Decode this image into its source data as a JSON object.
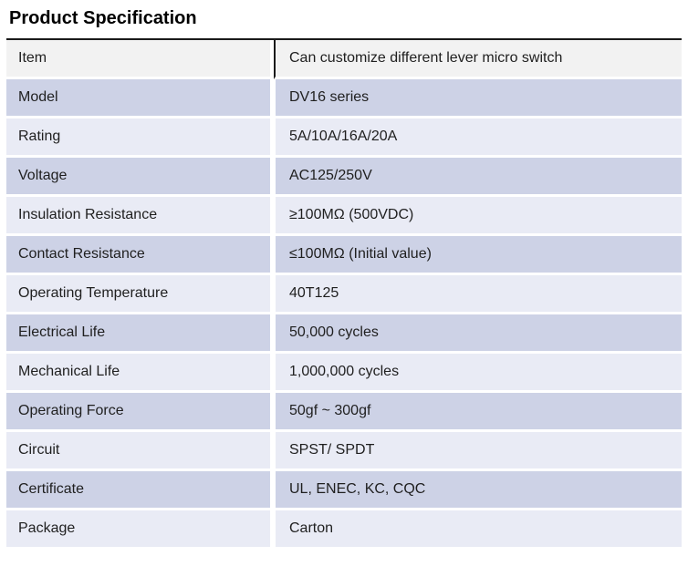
{
  "page": {
    "title": "Product Specification"
  },
  "table": {
    "rows": [
      {
        "label": "Item",
        "value": "Can customize different lever micro switch"
      },
      {
        "label": "Model",
        "value": "DV16 series"
      },
      {
        "label": "Rating",
        "value": "5A/10A/16A/20A"
      },
      {
        "label": "Voltage",
        "value": "AC125/250V"
      },
      {
        "label": "Insulation Resistance",
        "value": "≥100MΩ (500VDC)"
      },
      {
        "label": "Contact Resistance",
        "value": "≤100MΩ (Initial value)"
      },
      {
        "label": "Operating Temperature",
        "value": "40T125"
      },
      {
        "label": "Electrical Life",
        "value": "50,000 cycles"
      },
      {
        "label": "Mechanical Life",
        "value": "1,000,000 cycles"
      },
      {
        "label": "Operating Force",
        "value": "50gf ~ 300gf"
      },
      {
        "label": "Circuit",
        "value": "SPST/ SPDT"
      },
      {
        "label": "Certificate",
        "value": "UL, ENEC, KC, CQC"
      },
      {
        "label": "Package",
        "value": "Carton"
      }
    ],
    "colors": {
      "header_bg": "#f2f2f2",
      "row_dark": "#cdd2e6",
      "row_light": "#e9ebf5",
      "border_top": "#1a1a1a",
      "text": "#1f1f1f"
    }
  }
}
